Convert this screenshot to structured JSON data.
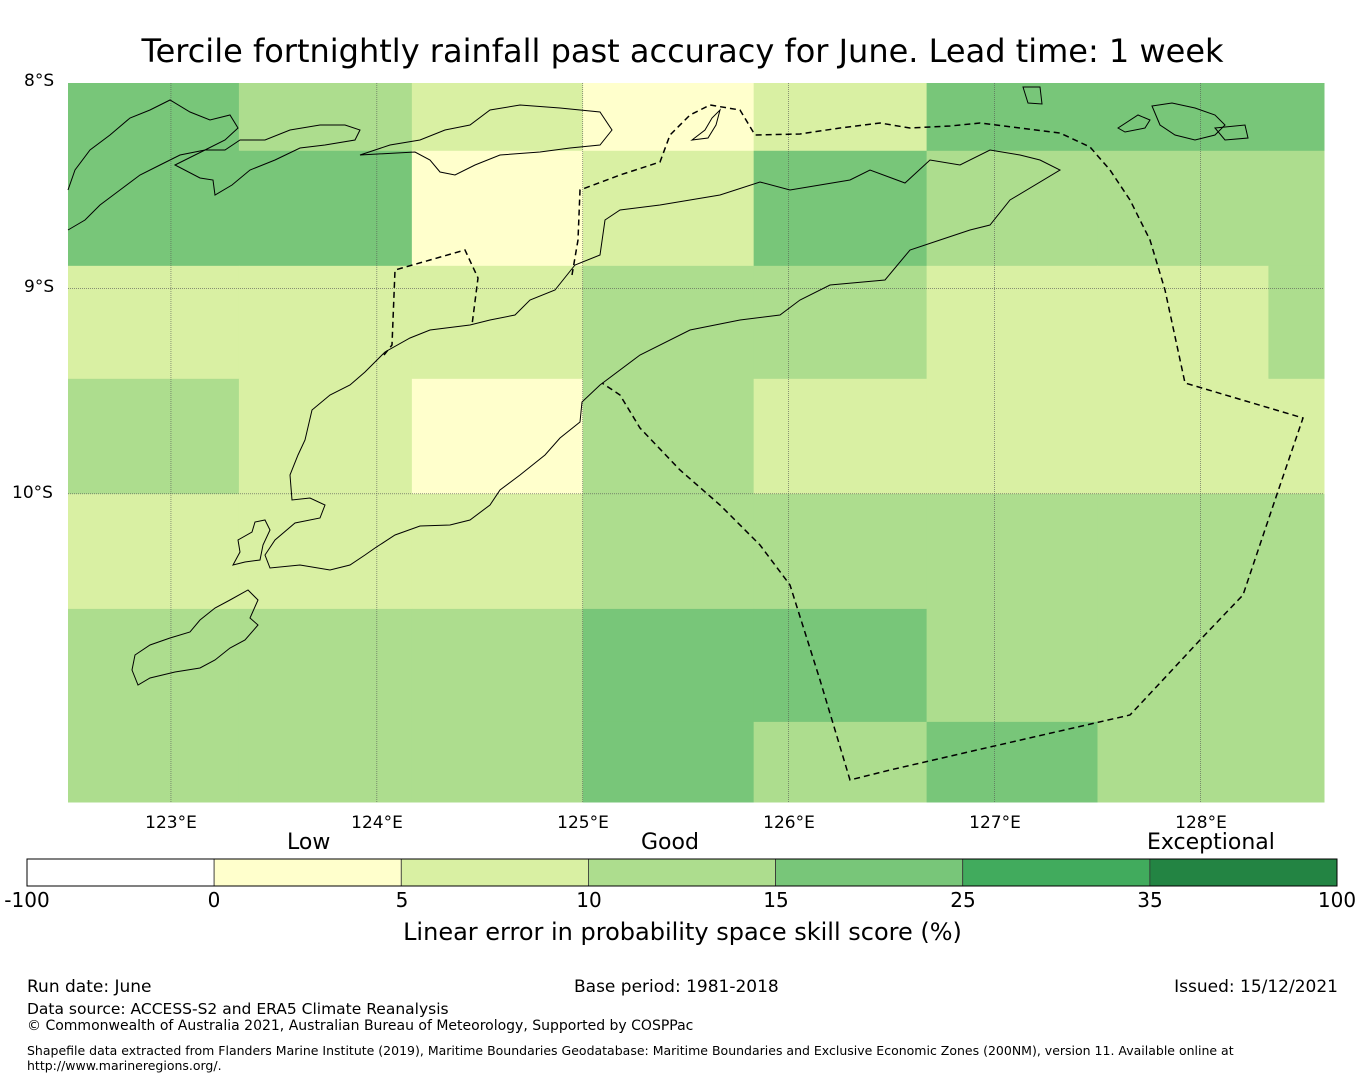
{
  "title": "Tercile fortnightly rainfall past accuracy for June. Lead time: 1 week",
  "lat_labels": [
    "8°S",
    "9°S",
    "10°S"
  ],
  "lon_labels": [
    "123°E",
    "124°E",
    "125°E",
    "126°E",
    "127°E",
    "128°E"
  ],
  "map_extent": {
    "lon_min": 122.5,
    "lon_max": 128.6,
    "lat_min": -11.5,
    "lat_max": -8.0
  },
  "grid": {
    "lons": [
      122.5,
      123.33,
      124.17,
      125.0,
      125.83,
      126.67,
      127.5,
      128.33,
      128.6
    ],
    "lats": [
      -8.0,
      -8.33,
      -8.89,
      -9.44,
      -10.0,
      -10.56,
      -11.11,
      -11.5
    ],
    "cells": [
      [
        4,
        3,
        2,
        1,
        2,
        4,
        4,
        4
      ],
      [
        4,
        4,
        1,
        2,
        4,
        3,
        3,
        3
      ],
      [
        2,
        2,
        2,
        3,
        3,
        2,
        2,
        3
      ],
      [
        3,
        2,
        1,
        3,
        2,
        2,
        2,
        2
      ],
      [
        2,
        2,
        2,
        3,
        3,
        3,
        3,
        3
      ],
      [
        3,
        3,
        3,
        4,
        4,
        3,
        3,
        3
      ],
      [
        3,
        3,
        3,
        4,
        3,
        4,
        3,
        3
      ]
    ]
  },
  "colorbar": {
    "ticks": [
      "-100",
      "0",
      "5",
      "10",
      "15",
      "25",
      "35",
      "100"
    ],
    "colors": [
      "#ffffff",
      "#ffffcc",
      "#d9f0a3",
      "#addd8e",
      "#78c679",
      "#41ab5d",
      "#238443"
    ],
    "categories": [
      "Low",
      "Good",
      "Exceptional"
    ],
    "label": "Linear error in probability space skill score (%)"
  },
  "footer": {
    "run_date": "Run date: June",
    "base_period": "Base period: 1981-2018",
    "issued": "Issued: 15/12/2021",
    "data_source": "Data source: ACCESS-S2 and ERA5 Climate Reanalysis",
    "copyright": "© Commonwealth of Australia 2021, Australian Bureau of Meteorology, Supported by COSPPac",
    "shapefile_line1": "Shapefile data extracted from Flanders Marine Institute (2019), Maritime Boundaries Geodatabase: Maritime Boundaries and Exclusive Economic Zones (200NM), version 11. Available online at",
    "shapefile_line2": "http://www.marineregions.org/."
  }
}
